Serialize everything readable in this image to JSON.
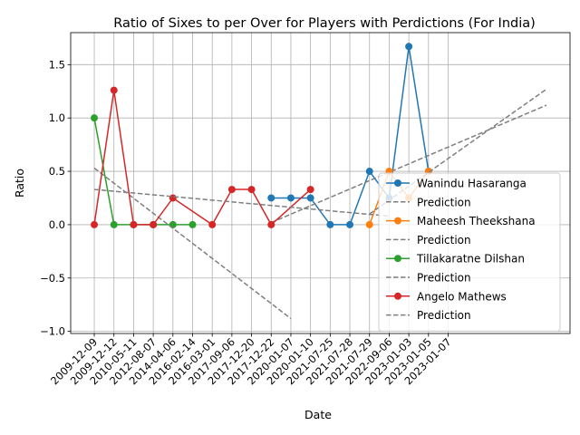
{
  "chart_data": {
    "type": "line",
    "title": "Ratio of Sixes to per Over for Players with Perdictions (For India)",
    "xlabel": "Date",
    "ylabel": "Ratio",
    "ylim": [
      -1.02,
      1.8
    ],
    "grid": true,
    "legend_position": "lower-right",
    "categories": [
      "2009-12-09",
      "2009-12-12",
      "2010-05-11",
      "2012-08-07",
      "2014-04-06",
      "2016-02-14",
      "2016-03-01",
      "2017-09-06",
      "2017-12-20",
      "2017-12-22",
      "2020-01-07",
      "2020-01-10",
      "2021-07-25",
      "2021-07-28",
      "2021-07-29",
      "2022-09-06",
      "2023-01-03",
      "2023-01-05",
      "2023-01-07"
    ],
    "yticks": [
      "1.5",
      "1.0",
      "0.5",
      "0.0",
      "−0.5",
      "−1.0"
    ],
    "ytick_values": [
      1.5,
      1.0,
      0.5,
      0.0,
      -0.5,
      -1.0
    ],
    "series": [
      {
        "name": "Wanindu Hasaranga",
        "color": "#1f77b4",
        "x": [
          9,
          10,
          11,
          12,
          13,
          14,
          15,
          16,
          17
        ],
        "values": [
          0.25,
          0.25,
          0.25,
          0.0,
          0.0,
          0.5,
          0.25,
          1.67,
          0.5
        ]
      },
      {
        "name": "Maheesh Theekshana",
        "color": "#ff7f0e",
        "x": [
          14,
          15,
          16,
          17
        ],
        "values": [
          0.0,
          0.5,
          0.25,
          0.5
        ]
      },
      {
        "name": "Tillakaratne Dilshan",
        "color": "#2ca02c",
        "x": [
          0,
          1,
          2,
          3,
          4,
          5
        ],
        "values": [
          1.0,
          0.0,
          0.0,
          0.0,
          0.0,
          0.0
        ]
      },
      {
        "name": "Angelo Mathews",
        "color": "#d62728",
        "x": [
          0,
          1,
          2,
          3,
          4,
          6,
          7,
          8,
          9,
          11
        ],
        "values": [
          0.0,
          1.26,
          0.0,
          0.0,
          0.25,
          0.0,
          0.33,
          0.33,
          0.0,
          0.33
        ]
      }
    ],
    "predictions": [
      {
        "name": "Prediction",
        "color": "#7f7f7f",
        "x": [
          9,
          23
        ],
        "values": [
          0.02,
          1.12
        ]
      },
      {
        "name": "Prediction",
        "color": "#7f7f7f",
        "x": [
          14,
          23
        ],
        "values": [
          0.1,
          1.27
        ]
      },
      {
        "name": "Prediction",
        "color": "#7f7f7f",
        "x": [
          0,
          10
        ],
        "values": [
          0.53,
          -0.88
        ]
      },
      {
        "name": "Prediction",
        "color": "#7f7f7f",
        "x": [
          0,
          15
        ],
        "values": [
          0.33,
          0.08
        ]
      }
    ],
    "xlim": [
      -1.2,
      24.2
    ]
  }
}
